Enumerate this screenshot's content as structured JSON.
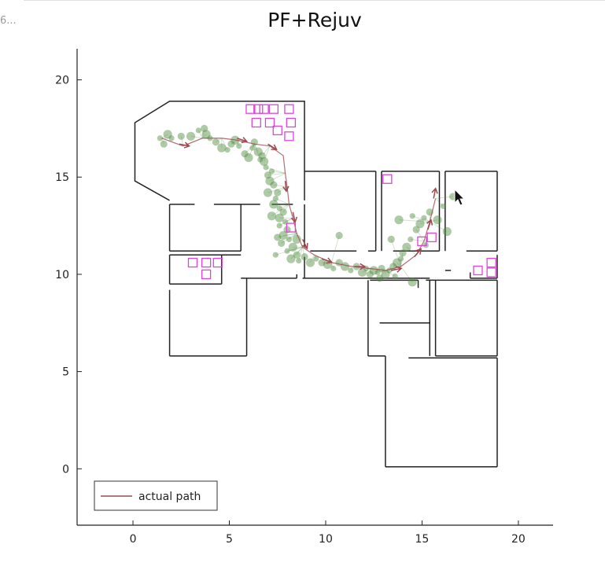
{
  "window": {
    "truncated_label": "6..."
  },
  "chart_data": {
    "type": "scatter",
    "title": "PF+Rejuv",
    "xlabel": "",
    "ylabel": "",
    "xlim": [
      -2.9,
      21.8
    ],
    "ylim": [
      -2.9,
      21.6
    ],
    "xticks": [
      0,
      5,
      10,
      15,
      20
    ],
    "yticks": [
      0,
      5,
      10,
      15,
      20
    ],
    "tick_labels_x": [
      "0",
      "5",
      "10",
      "15",
      "20"
    ],
    "tick_labels_y": [
      "0",
      "5",
      "10",
      "15",
      "20"
    ],
    "grid": false,
    "legend": {
      "placement": "bottom-left",
      "entries": [
        "actual path"
      ]
    },
    "colors": {
      "walls": "#222222",
      "path": "#9c4a52",
      "particles": "#4d8a3c",
      "markers": "#dd44dd"
    },
    "walls": [
      [
        [
          1.9,
          13.8
        ],
        [
          0.1,
          14.8
        ],
        [
          0.1,
          17.8
        ],
        [
          1.9,
          18.9
        ],
        [
          8.9,
          18.9
        ],
        [
          8.9,
          13.8
        ]
      ],
      [
        [
          1.9,
          13.6
        ],
        [
          3.2,
          13.6
        ]
      ],
      [
        [
          4.2,
          13.6
        ],
        [
          6.6,
          13.6
        ]
      ],
      [
        [
          7.2,
          13.6
        ],
        [
          8.3,
          13.6
        ]
      ],
      [
        [
          1.9,
          13.6
        ],
        [
          1.9,
          11.2
        ]
      ],
      [
        [
          5.6,
          13.6
        ],
        [
          5.6,
          11.2
        ]
      ],
      [
        [
          1.9,
          11.2
        ],
        [
          5.6,
          11.2
        ]
      ],
      [
        [
          1.9,
          11.0
        ],
        [
          1.9,
          9.5
        ]
      ],
      [
        [
          1.9,
          9.5
        ],
        [
          4.6,
          9.5
        ]
      ],
      [
        [
          4.6,
          9.5
        ],
        [
          4.6,
          11.0
        ]
      ],
      [
        [
          1.9,
          11.0
        ],
        [
          5.6,
          11.0
        ]
      ],
      [
        [
          1.9,
          9.2
        ],
        [
          1.9,
          5.8
        ]
      ],
      [
        [
          1.9,
          5.8
        ],
        [
          5.9,
          5.8
        ]
      ],
      [
        [
          5.9,
          5.8
        ],
        [
          5.9,
          9.8
        ]
      ],
      [
        [
          5.6,
          9.8
        ],
        [
          8.5,
          9.8
        ]
      ],
      [
        [
          8.5,
          9.8
        ],
        [
          8.5,
          10.0
        ]
      ],
      [
        [
          8.8,
          9.8
        ],
        [
          15.4,
          9.8
        ]
      ],
      [
        [
          8.9,
          13.6
        ],
        [
          8.9,
          11.4
        ]
      ],
      [
        [
          8.9,
          15.3
        ],
        [
          12.6,
          15.3
        ]
      ],
      [
        [
          12.6,
          15.3
        ],
        [
          12.6,
          11.2
        ]
      ],
      [
        [
          9.2,
          11.2
        ],
        [
          11.6,
          11.2
        ]
      ],
      [
        [
          12.2,
          11.2
        ],
        [
          12.6,
          11.2
        ]
      ],
      [
        [
          8.9,
          10.9
        ],
        [
          8.9,
          9.8
        ]
      ],
      [
        [
          12.9,
          15.3
        ],
        [
          15.9,
          15.3
        ]
      ],
      [
        [
          12.9,
          15.3
        ],
        [
          12.9,
          11.2
        ]
      ],
      [
        [
          15.9,
          15.3
        ],
        [
          15.9,
          11.2
        ]
      ],
      [
        [
          13.5,
          11.2
        ],
        [
          15.9,
          11.2
        ]
      ],
      [
        [
          16.2,
          15.3
        ],
        [
          18.9,
          15.3
        ]
      ],
      [
        [
          16.2,
          15.3
        ],
        [
          16.2,
          11.2
        ]
      ],
      [
        [
          18.9,
          15.3
        ],
        [
          18.9,
          11.2
        ]
      ],
      [
        [
          17.3,
          11.2
        ],
        [
          18.9,
          11.2
        ]
      ],
      [
        [
          18.9,
          11.0
        ],
        [
          18.9,
          9.8
        ]
      ],
      [
        [
          17.5,
          9.8
        ],
        [
          18.9,
          9.8
        ]
      ],
      [
        [
          17.5,
          9.8
        ],
        [
          17.5,
          10.1
        ]
      ],
      [
        [
          16.2,
          10.2
        ],
        [
          16.5,
          10.2
        ]
      ],
      [
        [
          12.2,
          9.7
        ],
        [
          12.2,
          5.8
        ]
      ],
      [
        [
          12.2,
          5.8
        ],
        [
          13.1,
          5.8
        ]
      ],
      [
        [
          13.1,
          5.8
        ],
        [
          13.1,
          0.1
        ]
      ],
      [
        [
          13.1,
          0.1
        ],
        [
          18.9,
          0.1
        ]
      ],
      [
        [
          18.9,
          0.1
        ],
        [
          18.9,
          5.7
        ]
      ],
      [
        [
          14.3,
          5.7
        ],
        [
          18.9,
          5.7
        ]
      ],
      [
        [
          12.3,
          9.7
        ],
        [
          14.8,
          9.7
        ]
      ],
      [
        [
          14.8,
          9.7
        ],
        [
          14.8,
          9.3
        ]
      ],
      [
        [
          15.4,
          9.7
        ],
        [
          15.4,
          5.8
        ]
      ],
      [
        [
          15.2,
          9.7
        ],
        [
          15.7,
          9.7
        ]
      ],
      [
        [
          15.7,
          9.7
        ],
        [
          15.7,
          5.8
        ]
      ],
      [
        [
          15.7,
          9.7
        ],
        [
          18.9,
          9.7
        ]
      ],
      [
        [
          18.9,
          9.7
        ],
        [
          18.9,
          5.8
        ]
      ],
      [
        [
          15.7,
          5.8
        ],
        [
          18.9,
          5.8
        ]
      ],
      [
        [
          12.8,
          7.5
        ],
        [
          15.4,
          7.5
        ]
      ]
    ],
    "actual_path": [
      [
        1.5,
        17.0
      ],
      [
        2.6,
        16.6
      ],
      [
        3.6,
        17.0
      ],
      [
        4.6,
        17.0
      ],
      [
        5.4,
        16.9
      ],
      [
        6.3,
        16.7
      ],
      [
        7.1,
        16.6
      ],
      [
        7.8,
        16.1
      ],
      [
        7.9,
        15.2
      ],
      [
        8.0,
        14.5
      ],
      [
        8.1,
        13.6
      ],
      [
        8.3,
        12.9
      ],
      [
        8.5,
        12.1
      ],
      [
        8.8,
        11.4
      ],
      [
        9.4,
        11.0
      ],
      [
        10.3,
        10.6
      ],
      [
        11.4,
        10.4
      ],
      [
        12.3,
        10.3
      ],
      [
        13.1,
        10.2
      ],
      [
        13.9,
        10.4
      ],
      [
        14.7,
        11.0
      ],
      [
        15.1,
        11.7
      ],
      [
        15.4,
        12.7
      ],
      [
        15.7,
        13.9
      ]
    ],
    "arrows": [
      [
        2.4,
        16.7,
        1.0,
        -0.2
      ],
      [
        5.4,
        17.0,
        0.9,
        -0.3
      ],
      [
        7.0,
        16.7,
        0.8,
        -0.5
      ],
      [
        7.9,
        14.8,
        0.1,
        -0.9
      ],
      [
        8.3,
        13.2,
        0.2,
        -0.9
      ],
      [
        8.8,
        11.8,
        0.4,
        -0.8
      ],
      [
        9.8,
        10.8,
        0.9,
        -0.3
      ],
      [
        11.5,
        10.4,
        1.0,
        0.0
      ],
      [
        13.4,
        10.2,
        1.0,
        0.2
      ],
      [
        14.6,
        10.9,
        0.6,
        0.7
      ],
      [
        15.3,
        12.3,
        0.3,
        0.9
      ],
      [
        15.6,
        13.9,
        0.2,
        1.0
      ]
    ],
    "particles": [
      [
        1.4,
        17.0
      ],
      [
        1.6,
        16.7
      ],
      [
        1.8,
        17.2
      ],
      [
        2.0,
        17.0
      ],
      [
        2.5,
        17.1
      ],
      [
        3.0,
        17.1
      ],
      [
        3.4,
        17.4
      ],
      [
        3.7,
        17.5
      ],
      [
        3.8,
        17.2
      ],
      [
        4.0,
        17.0
      ],
      [
        4.3,
        16.8
      ],
      [
        4.6,
        16.5
      ],
      [
        4.9,
        16.4
      ],
      [
        5.1,
        16.7
      ],
      [
        5.3,
        16.9
      ],
      [
        5.5,
        16.6
      ],
      [
        5.8,
        16.2
      ],
      [
        6.0,
        16.0
      ],
      [
        6.2,
        16.5
      ],
      [
        6.3,
        16.8
      ],
      [
        6.5,
        16.3
      ],
      [
        6.6,
        15.9
      ],
      [
        6.7,
        16.1
      ],
      [
        6.8,
        15.8
      ],
      [
        6.9,
        15.5
      ],
      [
        7.0,
        15.1
      ],
      [
        7.1,
        14.8
      ],
      [
        7.2,
        15.3
      ],
      [
        7.3,
        14.6
      ],
      [
        7.0,
        14.2
      ],
      [
        7.4,
        13.9
      ],
      [
        7.5,
        14.2
      ],
      [
        7.3,
        13.6
      ],
      [
        7.6,
        13.4
      ],
      [
        7.8,
        13.2
      ],
      [
        7.6,
        12.9
      ],
      [
        7.9,
        12.7
      ],
      [
        8.0,
        12.3
      ],
      [
        7.8,
        12.0
      ],
      [
        8.1,
        11.8
      ],
      [
        7.7,
        11.6
      ],
      [
        8.3,
        11.4
      ],
      [
        8.0,
        11.2
      ],
      [
        8.5,
        11.0
      ],
      [
        8.2,
        10.8
      ],
      [
        8.6,
        10.7
      ],
      [
        8.9,
        10.9
      ],
      [
        9.2,
        10.6
      ],
      [
        9.5,
        10.8
      ],
      [
        9.8,
        10.6
      ],
      [
        10.1,
        10.5
      ],
      [
        10.4,
        10.3
      ],
      [
        10.7,
        10.6
      ],
      [
        11.0,
        10.4
      ],
      [
        11.3,
        10.2
      ],
      [
        11.6,
        10.4
      ],
      [
        11.9,
        10.1
      ],
      [
        12.1,
        10.3
      ],
      [
        12.3,
        10.0
      ],
      [
        12.5,
        10.2
      ],
      [
        12.7,
        10.1
      ],
      [
        12.9,
        10.3
      ],
      [
        13.1,
        10.0
      ],
      [
        13.3,
        10.2
      ],
      [
        13.5,
        10.4
      ],
      [
        13.7,
        10.6
      ],
      [
        13.9,
        10.8
      ],
      [
        14.0,
        11.1
      ],
      [
        14.2,
        11.4
      ],
      [
        14.4,
        11.8
      ],
      [
        14.7,
        12.3
      ],
      [
        14.9,
        12.6
      ],
      [
        15.1,
        12.9
      ],
      [
        15.4,
        13.2
      ],
      [
        15.8,
        12.8
      ],
      [
        16.1,
        13.5
      ],
      [
        16.6,
        14.0
      ],
      [
        16.3,
        12.2
      ],
      [
        15.2,
        11.5
      ],
      [
        13.4,
        11.8
      ],
      [
        13.8,
        12.8
      ],
      [
        14.5,
        13.0
      ],
      [
        10.7,
        12.0
      ],
      [
        8.5,
        11.8
      ],
      [
        7.4,
        11.0
      ],
      [
        7.5,
        11.9
      ],
      [
        14.5,
        9.6
      ],
      [
        13.6,
        9.9
      ],
      [
        12.8,
        9.8
      ],
      [
        7.2,
        13.0
      ],
      [
        7.6,
        12.5
      ]
    ],
    "particle_markers": [
      [
        6.1,
        18.5
      ],
      [
        6.5,
        18.5
      ],
      [
        6.8,
        18.5
      ],
      [
        7.3,
        18.5
      ],
      [
        8.1,
        18.5
      ],
      [
        6.4,
        17.8
      ],
      [
        7.1,
        17.8
      ],
      [
        7.5,
        17.4
      ],
      [
        8.1,
        17.1
      ],
      [
        8.2,
        17.8
      ],
      [
        13.2,
        14.9
      ],
      [
        3.1,
        10.6
      ],
      [
        3.8,
        10.6
      ],
      [
        4.4,
        10.6
      ],
      [
        3.8,
        10.0
      ],
      [
        15.0,
        11.7
      ],
      [
        15.5,
        11.9
      ],
      [
        18.6,
        10.6
      ],
      [
        17.9,
        10.2
      ],
      [
        18.6,
        10.1
      ],
      [
        8.2,
        12.4
      ]
    ]
  }
}
